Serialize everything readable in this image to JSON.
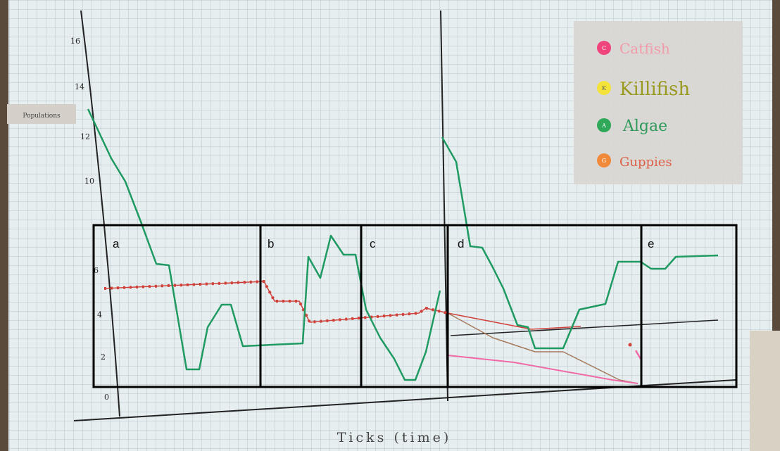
{
  "y_axis_label": "Populations",
  "y_axis_numbers": [
    "16",
    "14",
    "12",
    "10",
    "6",
    "4",
    "2",
    "0"
  ],
  "x_axis_label": "Ticks (time)",
  "legend": [
    {
      "letter": "C",
      "label": "Catfish"
    },
    {
      "letter": "K",
      "label": "Killifish"
    },
    {
      "letter": "A",
      "label": "Algae"
    },
    {
      "letter": "G",
      "label": "Guppies"
    }
  ],
  "panels": [
    "a",
    "b",
    "c",
    "d",
    "e"
  ]
}
